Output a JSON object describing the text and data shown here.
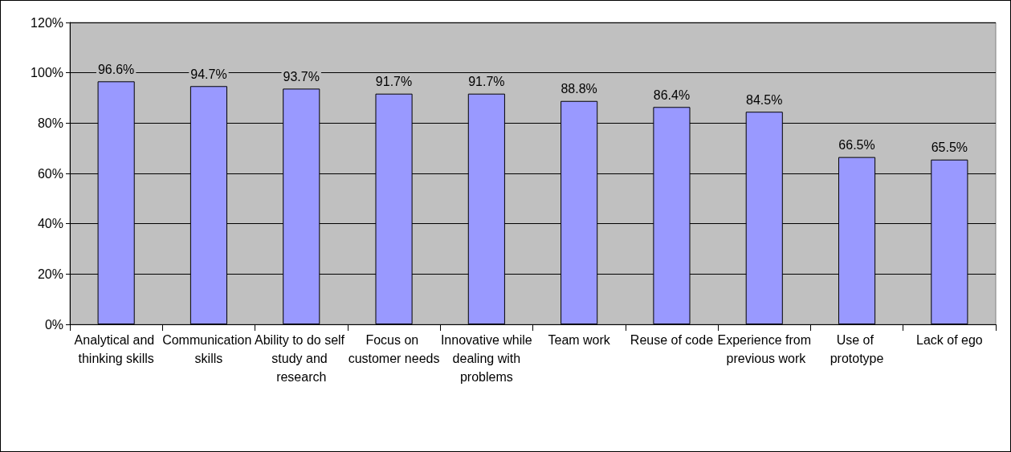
{
  "chart_data": {
    "type": "bar",
    "categories": [
      "Analytical and thinking skills",
      "Communication skills",
      "Ability to do self study and research",
      "Focus on customer needs",
      "Innovative while dealing with problems",
      "Team work",
      "Reuse of code",
      "Experience from previous work",
      "Use of prototype",
      "Lack of ego"
    ],
    "values": [
      96.6,
      94.7,
      93.7,
      91.7,
      91.7,
      88.8,
      86.4,
      84.5,
      66.5,
      65.5
    ],
    "value_labels": [
      "96.6%",
      "94.7%",
      "93.7%",
      "91.7%",
      "91.7%",
      "88.8%",
      "86.4%",
      "84.5%",
      "66.5%",
      "65.5%"
    ],
    "color": "#9999ff",
    "ylim": [
      0,
      120
    ],
    "yticks": [
      {
        "value": 0,
        "label": "0%"
      },
      {
        "value": 20,
        "label": "20%"
      },
      {
        "value": 40,
        "label": "40%"
      },
      {
        "value": 60,
        "label": "60%"
      },
      {
        "value": 80,
        "label": "80%"
      },
      {
        "value": 100,
        "label": "100%"
      },
      {
        "value": 120,
        "label": "120%"
      }
    ],
    "grid": "y"
  }
}
